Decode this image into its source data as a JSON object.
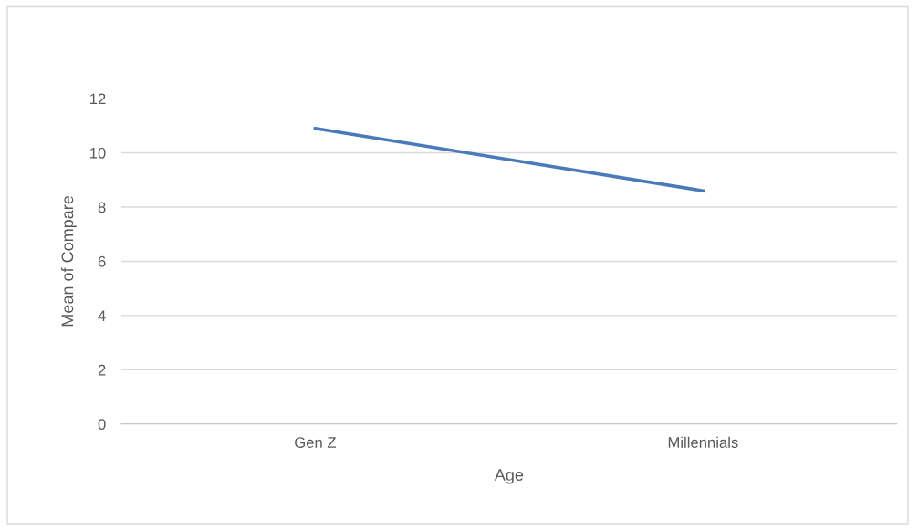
{
  "chart_data": {
    "type": "line",
    "xlabel": "Age",
    "ylabel": "Mean of Compare",
    "categories": [
      "Gen Z",
      "Millennials"
    ],
    "series": [
      {
        "color": "#4a7ab9",
        "values": [
          10.9,
          8.6
        ]
      }
    ],
    "ylim": [
      0,
      12
    ],
    "yticks": [
      0,
      2,
      4,
      6,
      8,
      10,
      12
    ],
    "grid": "y",
    "legend": false,
    "marker": "none",
    "line_style": "solid"
  }
}
